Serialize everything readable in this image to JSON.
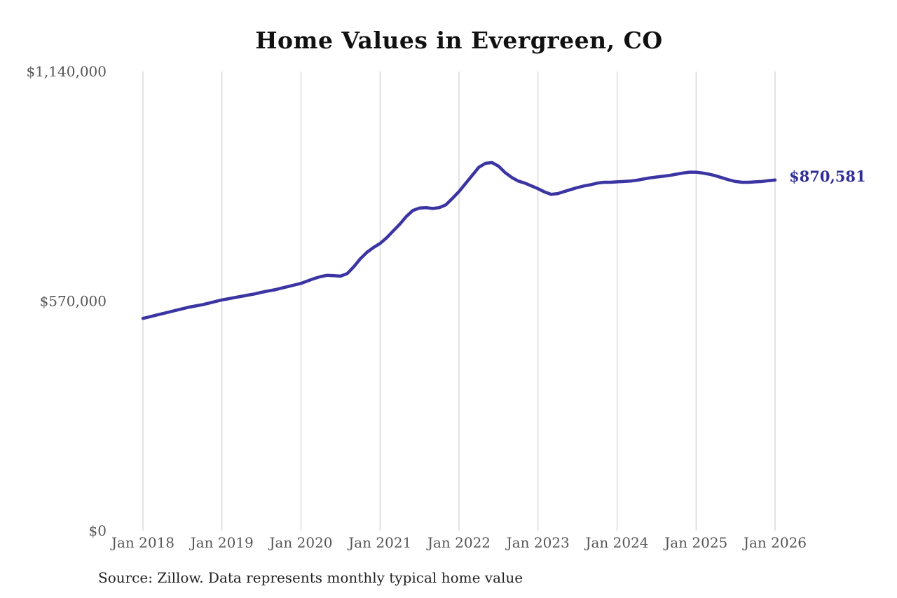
{
  "page": {
    "background": "#ffffff"
  },
  "header": {
    "title": "Home Values in Evergreen, CO"
  },
  "footer": {
    "source_note": "Source: Zillow. Data represents monthly typical home value"
  },
  "colors": {
    "line": "#3a35a2",
    "end_label": "#312e99",
    "gridline": "#c9c9c9",
    "tick_text": "#555555",
    "title_text": "#111111",
    "source_text": "#222222",
    "background": "#ffffff"
  },
  "chart_data": {
    "type": "line",
    "title": "Home Values in Evergreen, CO",
    "xlabel": "",
    "ylabel": "",
    "ylim": [
      0,
      1140000
    ],
    "grid": "vertical-only",
    "legend": "none",
    "end_label": "$870,581",
    "end_value": 870581,
    "x_tick_labels": [
      "Jan 2018",
      "Jan 2019",
      "Jan 2020",
      "Jan 2021",
      "Jan 2022",
      "Jan 2023",
      "Jan 2024",
      "Jan 2025",
      "Jan 2026"
    ],
    "y_ticks": [
      {
        "value": 0,
        "label": "$0"
      },
      {
        "value": 570000,
        "label": "$570,000"
      },
      {
        "value": 1140000,
        "label": "$1,140,000"
      }
    ],
    "x": [
      "2018-01",
      "2018-02",
      "2018-03",
      "2018-04",
      "2018-05",
      "2018-06",
      "2018-07",
      "2018-08",
      "2018-09",
      "2018-10",
      "2018-11",
      "2018-12",
      "2019-01",
      "2019-02",
      "2019-03",
      "2019-04",
      "2019-05",
      "2019-06",
      "2019-07",
      "2019-08",
      "2019-09",
      "2019-10",
      "2019-11",
      "2019-12",
      "2020-01",
      "2020-02",
      "2020-03",
      "2020-04",
      "2020-05",
      "2020-06",
      "2020-07",
      "2020-08",
      "2020-09",
      "2020-10",
      "2020-11",
      "2020-12",
      "2021-01",
      "2021-02",
      "2021-03",
      "2021-04",
      "2021-05",
      "2021-06",
      "2021-07",
      "2021-08",
      "2021-09",
      "2021-10",
      "2021-11",
      "2021-12",
      "2022-01",
      "2022-02",
      "2022-03",
      "2022-04",
      "2022-05",
      "2022-06",
      "2022-07",
      "2022-08",
      "2022-09",
      "2022-10",
      "2022-11",
      "2022-12",
      "2023-01",
      "2023-02",
      "2023-03",
      "2023-04",
      "2023-05",
      "2023-06",
      "2023-07",
      "2023-08",
      "2023-09",
      "2023-10",
      "2023-11",
      "2023-12",
      "2024-01",
      "2024-02",
      "2024-03",
      "2024-04",
      "2024-05",
      "2024-06",
      "2024-07",
      "2024-08",
      "2024-09",
      "2024-10",
      "2024-11",
      "2024-12",
      "2025-01",
      "2025-02",
      "2025-03",
      "2025-04",
      "2025-05",
      "2025-06",
      "2025-07",
      "2025-08",
      "2025-09",
      "2025-10",
      "2025-11",
      "2025-12",
      "2026-01"
    ],
    "series": [
      {
        "name": "Typical home value",
        "color": "#3a35a2",
        "values": [
          527000,
          531000,
          535000,
          539000,
          543000,
          547000,
          551000,
          555000,
          558000,
          561000,
          565000,
          569000,
          573000,
          576000,
          579000,
          582000,
          585000,
          588000,
          592000,
          595000,
          598000,
          602000,
          606000,
          610000,
          614000,
          620000,
          626000,
          631000,
          634000,
          633000,
          632000,
          638000,
          655000,
          675000,
          691000,
          703000,
          713000,
          727000,
          744000,
          761000,
          780000,
          795000,
          801000,
          802000,
          800000,
          802000,
          809000,
          825000,
          842000,
          862000,
          882000,
          902000,
          912000,
          914000,
          905000,
          889000,
          877000,
          868000,
          863000,
          856000,
          849000,
          841000,
          835000,
          837000,
          842000,
          847000,
          852000,
          856000,
          859000,
          863000,
          865000,
          865000,
          866000,
          867000,
          868000,
          870000,
          873000,
          876000,
          878000,
          880000,
          882000,
          885000,
          888000,
          890000,
          890000,
          888000,
          885000,
          881000,
          876000,
          871000,
          867000,
          865000,
          865000,
          866000,
          867000,
          869000,
          870581
        ]
      }
    ]
  }
}
